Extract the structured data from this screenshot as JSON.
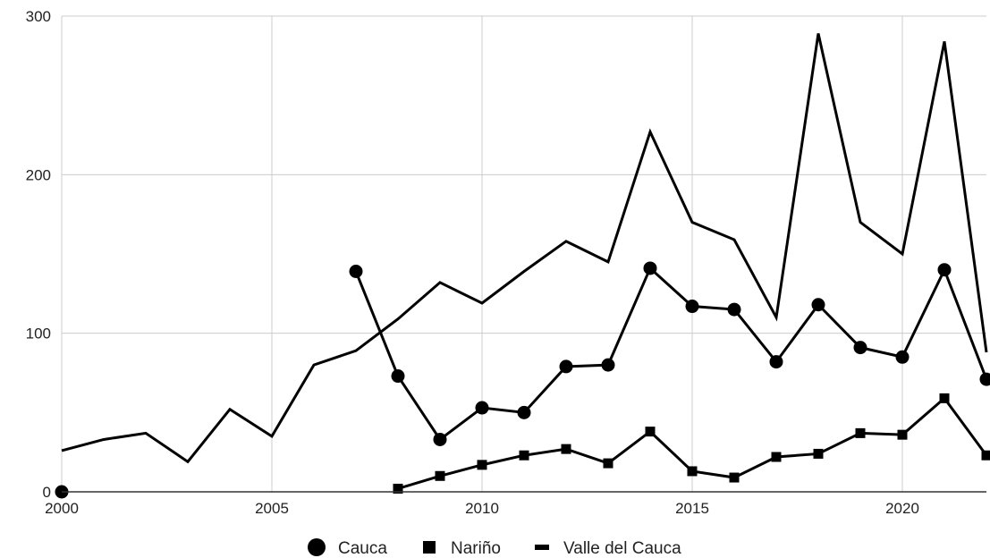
{
  "chart_data": {
    "type": "line",
    "title": "",
    "xlabel": "",
    "ylabel": "",
    "xlim": [
      2000,
      2022
    ],
    "ylim": [
      0,
      300
    ],
    "x_ticks": [
      "2000",
      "2005",
      "2010",
      "2015",
      "2020"
    ],
    "y_ticks": [
      "0",
      "100",
      "200",
      "300"
    ],
    "grid": true,
    "legend_position": "bottom",
    "series": [
      {
        "name": "Cauca",
        "marker": "circle",
        "color": "#000000",
        "points": [
          [
            2000,
            0
          ],
          [
            2007,
            139
          ],
          [
            2008,
            73
          ],
          [
            2009,
            33
          ],
          [
            2010,
            53
          ],
          [
            2011,
            50
          ],
          [
            2012,
            79
          ],
          [
            2013,
            80
          ],
          [
            2014,
            141
          ],
          [
            2015,
            117
          ],
          [
            2016,
            115
          ],
          [
            2017,
            82
          ],
          [
            2018,
            118
          ],
          [
            2019,
            91
          ],
          [
            2020,
            85
          ],
          [
            2021,
            140
          ],
          [
            2022,
            71
          ]
        ]
      },
      {
        "name": "Nariño",
        "marker": "square",
        "color": "#000000",
        "points": [
          [
            2008,
            2
          ],
          [
            2009,
            10
          ],
          [
            2010,
            17
          ],
          [
            2011,
            23
          ],
          [
            2012,
            27
          ],
          [
            2013,
            18
          ],
          [
            2014,
            38
          ],
          [
            2015,
            13
          ],
          [
            2016,
            9
          ],
          [
            2017,
            22
          ],
          [
            2018,
            24
          ],
          [
            2019,
            37
          ],
          [
            2020,
            36
          ],
          [
            2021,
            59
          ],
          [
            2022,
            23
          ]
        ]
      },
      {
        "name": "Valle del Cauca",
        "marker": "line",
        "color": "#000000",
        "points": [
          [
            2000,
            26
          ],
          [
            2001,
            33
          ],
          [
            2002,
            37
          ],
          [
            2003,
            19
          ],
          [
            2004,
            52
          ],
          [
            2005,
            35
          ],
          [
            2006,
            80
          ],
          [
            2007,
            89
          ],
          [
            2008,
            109
          ],
          [
            2009,
            132
          ],
          [
            2010,
            119
          ],
          [
            2011,
            139
          ],
          [
            2012,
            158
          ],
          [
            2013,
            145
          ],
          [
            2014,
            227
          ],
          [
            2015,
            170
          ],
          [
            2016,
            159
          ],
          [
            2017,
            110
          ],
          [
            2018,
            289
          ],
          [
            2019,
            170
          ],
          [
            2020,
            150
          ],
          [
            2021,
            284
          ],
          [
            2022,
            88
          ]
        ]
      }
    ]
  },
  "colors": {
    "grid": "#cccccc",
    "axis": "#333333",
    "series": "#000000",
    "text": "#222222"
  }
}
